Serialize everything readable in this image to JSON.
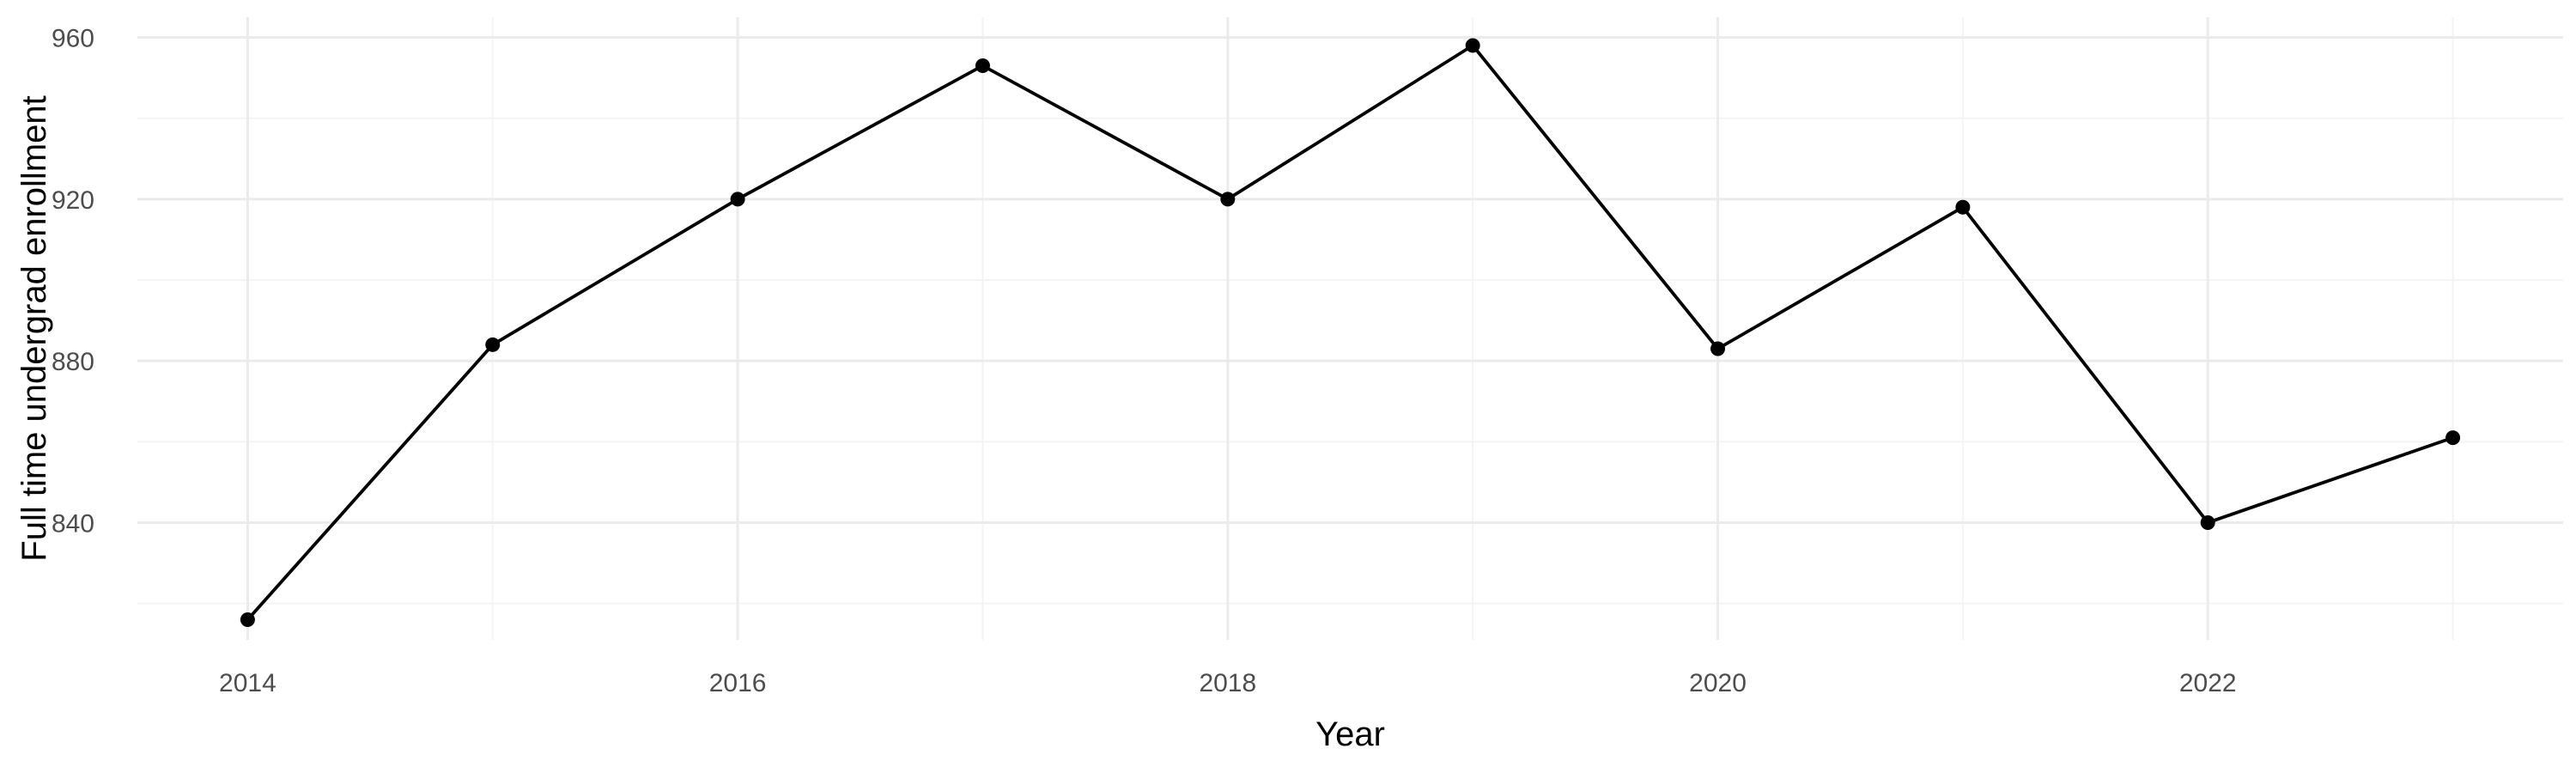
{
  "chart_data": {
    "type": "line",
    "title": "",
    "xlabel": "Year",
    "ylabel": "Full time undergrad enrollment",
    "x": [
      2014,
      2015,
      2016,
      2017,
      2018,
      2019,
      2020,
      2021,
      2022,
      2023
    ],
    "series": [
      {
        "values": [
          816,
          884,
          920,
          953,
          920,
          958,
          883,
          918,
          840,
          861
        ]
      }
    ],
    "xlim": [
      2013.55,
      2023.45
    ],
    "ylim": [
      811,
      965
    ],
    "x_ticks": [
      2014,
      2016,
      2018,
      2020,
      2022
    ],
    "y_ticks": [
      840,
      880,
      920,
      960
    ],
    "grid": true,
    "colors": {
      "line": "#000000",
      "point": "#000000",
      "grid": "#ebebeb",
      "tick_text": "#4d4d4d"
    }
  }
}
